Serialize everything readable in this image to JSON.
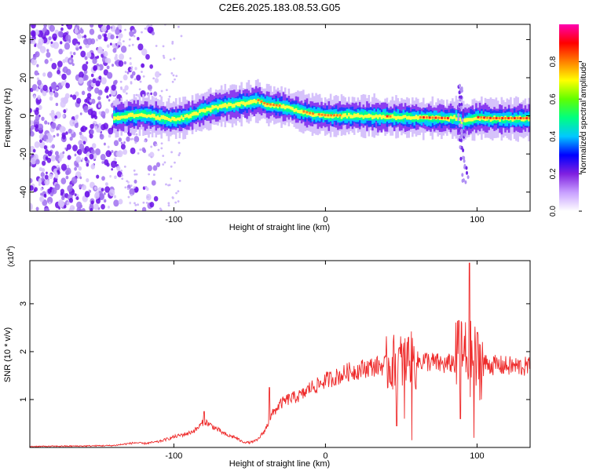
{
  "title": "C2E6.2025.183.08.53.G05",
  "colors": {
    "snr_line": "#ee2a2a",
    "scatter_purple": "#7a2cf0",
    "frame": "#000000"
  },
  "chart_data": [
    {
      "type": "heatmap",
      "xlabel": "Height of straight line (km)",
      "ylabel": "Frequency (Hz)",
      "xlim": [
        -195,
        135
      ],
      "ylim": [
        -50,
        48
      ],
      "xticks": [
        -100,
        0,
        100
      ],
      "yticks": [
        -40,
        -20,
        0,
        20,
        40
      ],
      "colorbar": {
        "label": "Normalized spectral amplitude",
        "range": [
          0.0,
          1.0
        ],
        "ticks": [
          "0.0",
          "0.2",
          "0.4",
          "0.6",
          "0.8"
        ],
        "tick_values": [
          0.0,
          0.2,
          0.4,
          0.6,
          0.8
        ],
        "colormap": "rainbow",
        "colors": [
          "#ffffff",
          "#c8a0ff",
          "#8020e0",
          "#0000ff",
          "#00c8ff",
          "#00ff80",
          "#60ff00",
          "#ffff00",
          "#ff8000",
          "#ff0000",
          "#ff00b0"
        ]
      },
      "ridge": {
        "x": [
          -140,
          -130,
          -120,
          -110,
          -100,
          -90,
          -80,
          -70,
          -60,
          -50,
          -45,
          -40,
          -30,
          -20,
          -10,
          0,
          20,
          40,
          60,
          80,
          85,
          90,
          95,
          100,
          110,
          120,
          135
        ],
        "frequency": [
          -1,
          0,
          0.5,
          -1,
          -2,
          0,
          3,
          5,
          6,
          7,
          8,
          6,
          5,
          3,
          1,
          0,
          0,
          -0.5,
          -1,
          -1.5,
          -1,
          -3,
          -2,
          -1,
          -1.5,
          -1.5,
          -1.5
        ]
      },
      "noise_region_x": [
        -195,
        -135
      ],
      "burst_x": 95
    },
    {
      "type": "line",
      "xlabel": "Height of straight line (km)",
      "ylabel": "SNR (10 * v/v)",
      "scale_label": "(x10",
      "scale_exponent": "4",
      "scale_suffix": ")",
      "xlim": [
        -195,
        135
      ],
      "ylim": [
        0,
        3.9
      ],
      "xticks": [
        -100,
        0,
        100
      ],
      "yticks": [
        1,
        2,
        3
      ],
      "series": [
        {
          "x": [
            -195,
            -160,
            -140,
            -130,
            -125,
            -120,
            -110,
            -100,
            -90,
            -85,
            -80,
            -75,
            -70,
            -65,
            -60,
            -55,
            -50,
            -45,
            -40,
            -35,
            -30,
            -25,
            -20,
            -15,
            -10,
            -5,
            0,
            5,
            10,
            15,
            20,
            25,
            30,
            35,
            40,
            45,
            50,
            55,
            60,
            65,
            70,
            75,
            80,
            85,
            90,
            95,
            100,
            105,
            110,
            120,
            135
          ],
          "values": [
            0.02,
            0.03,
            0.04,
            0.08,
            0.1,
            0.08,
            0.12,
            0.22,
            0.3,
            0.38,
            0.55,
            0.45,
            0.35,
            0.25,
            0.22,
            0.12,
            0.1,
            0.15,
            0.35,
            0.7,
            0.9,
            1.0,
            1.05,
            1.1,
            1.25,
            1.3,
            1.4,
            1.45,
            1.5,
            1.58,
            1.6,
            1.65,
            1.68,
            1.7,
            1.72,
            1.75,
            1.78,
            1.8,
            1.78,
            1.82,
            1.78,
            1.75,
            1.72,
            1.8,
            1.9,
            1.85,
            1.8,
            1.75,
            1.72,
            1.7,
            1.68
          ]
        }
      ],
      "spikes": [
        {
          "x": -80,
          "value": 0.75
        },
        {
          "x": -37,
          "value": 1.25
        },
        {
          "x": 45,
          "value": 2.35
        },
        {
          "x": 47,
          "value": 0.45
        },
        {
          "x": 52,
          "value": 0.6
        },
        {
          "x": 55,
          "value": 2.3
        },
        {
          "x": 57,
          "value": 0.15
        },
        {
          "x": 88,
          "value": 2.65
        },
        {
          "x": 89,
          "value": 0.6
        },
        {
          "x": 95,
          "value": 3.85
        },
        {
          "x": 98,
          "value": 0.2
        },
        {
          "x": 100,
          "value": 2.4
        }
      ]
    }
  ]
}
